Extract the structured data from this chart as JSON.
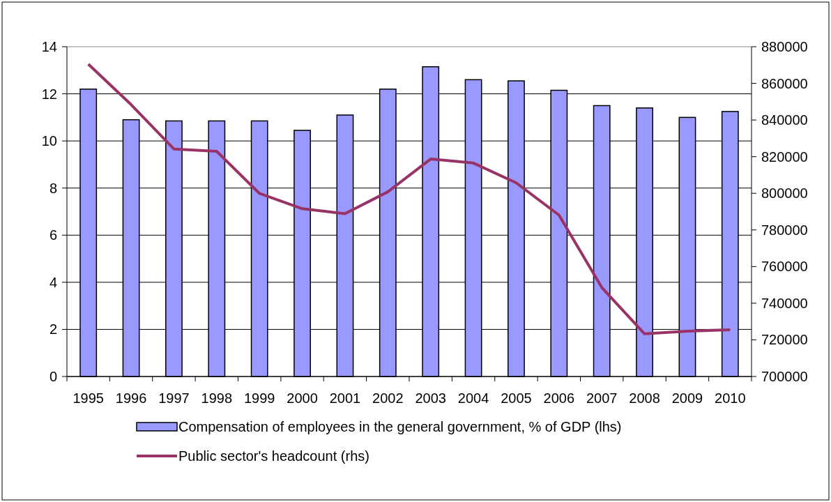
{
  "chart_data": {
    "type": "bar",
    "categories": [
      "1995",
      "1996",
      "1997",
      "1998",
      "1999",
      "2000",
      "2001",
      "2002",
      "2003",
      "2004",
      "2005",
      "2006",
      "2007",
      "2008",
      "2009",
      "2010"
    ],
    "series": [
      {
        "name": "Compensation of employees in the general government, % of GDP (lhs)",
        "color": "#9999ff",
        "values": [
          12.2,
          10.9,
          10.85,
          10.85,
          10.85,
          10.45,
          11.1,
          12.2,
          13.15,
          12.6,
          12.55,
          12.15,
          11.5,
          11.4,
          11.0,
          11.25
        ]
      },
      {
        "name": "Public sector's headcount (rhs)",
        "type": "line",
        "axis": "y2",
        "color": "#993366",
        "values": [
          870500,
          848400,
          824200,
          822900,
          799900,
          791600,
          788900,
          800800,
          818700,
          816500,
          805700,
          788100,
          748600,
          723300,
          724700,
          725500
        ]
      }
    ],
    "ylim": [
      0,
      14
    ],
    "yticks": [
      0,
      2,
      4,
      6,
      8,
      10,
      12,
      14
    ],
    "y2lim": [
      700000,
      880000
    ],
    "y2ticks": [
      700000,
      720000,
      740000,
      760000,
      780000,
      800000,
      820000,
      840000,
      860000,
      880000
    ],
    "grid": "y",
    "legend": "bottom",
    "marker": "none",
    "line_style": "solid"
  }
}
